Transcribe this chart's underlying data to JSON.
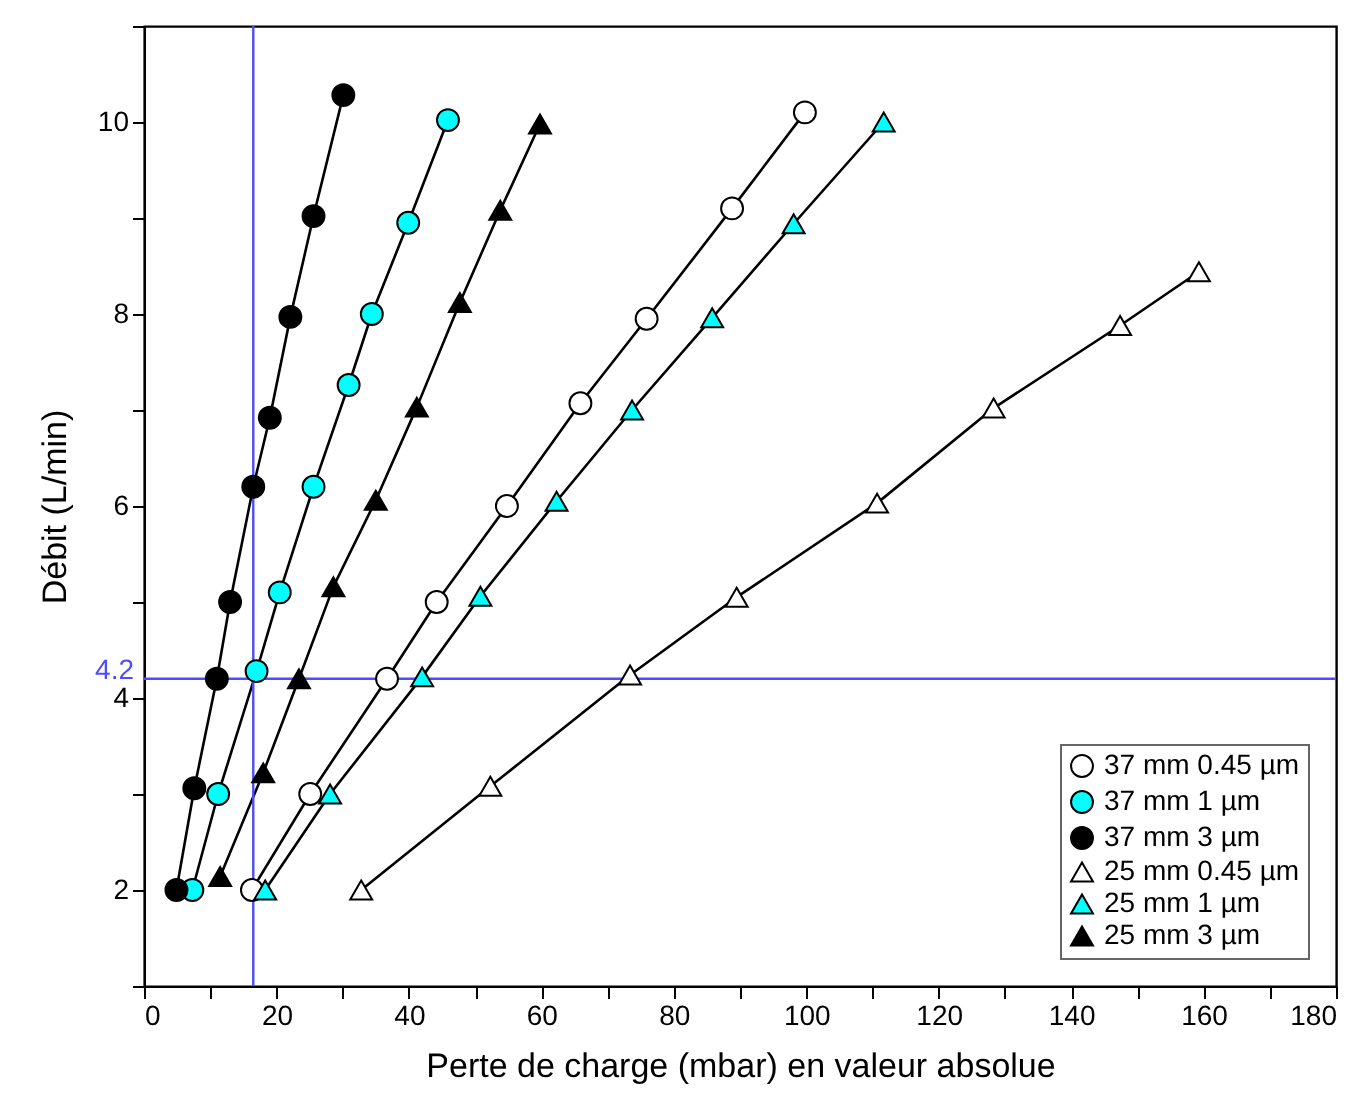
{
  "chart_data": {
    "type": "line",
    "xlabel": "Perte de charge (mbar) en valeur absolue",
    "ylabel": "Débit (L/min)",
    "xlim": [
      0,
      180
    ],
    "ylim": [
      1,
      11
    ],
    "xticks": [
      0,
      {
        "value": 10,
        "label": null
      },
      20,
      {
        "value": 30,
        "label": null
      },
      40,
      {
        "value": 50,
        "label": null
      },
      60,
      {
        "value": 70,
        "label": null
      },
      80,
      {
        "value": 90,
        "label": null
      },
      100,
      {
        "value": 110,
        "label": null
      },
      120,
      {
        "value": 130,
        "label": null
      },
      140,
      {
        "value": 150,
        "label": null
      },
      160,
      {
        "value": 170,
        "label": null
      },
      180
    ],
    "yticks": [
      {
        "value": 1,
        "label": null
      },
      2,
      {
        "value": 3,
        "label": null
      },
      4,
      {
        "value": 5,
        "label": null
      },
      6,
      {
        "value": 7,
        "label": null
      },
      8,
      {
        "value": 9,
        "label": null
      },
      10,
      {
        "value": 11,
        "label": null
      }
    ],
    "grid": false,
    "legend": "bottom right",
    "ref_lines": [
      {
        "axis": "y",
        "value": 4.2,
        "label": "4.2",
        "color": "#4d4dff"
      },
      {
        "axis": "x",
        "value": 16.5,
        "color": "#4d4dff"
      }
    ],
    "series": [
      {
        "name": "37 mm 0.45 µm",
        "color": "#ffffff",
        "marker": "circle",
        "x": [
          16.3,
          25.1,
          36.7,
          44.2,
          54.8,
          65.9,
          75.9,
          88.8,
          99.8
        ],
        "values": [
          2,
          3,
          4.2,
          5,
          6,
          7.07,
          7.95,
          9.1,
          10.1
        ]
      },
      {
        "name": "37 mm 1 µm",
        "color": "#00ffff",
        "marker": "circle",
        "x": [
          7.3,
          11.2,
          17,
          20.5,
          25.6,
          30.9,
          34.4,
          39.9,
          45.9
        ],
        "values": [
          2,
          3,
          4.28,
          5.1,
          6.2,
          7.26,
          8,
          8.95,
          10.02
        ]
      },
      {
        "name": "37 mm 3 µm",
        "color": "#000000",
        "marker": "circle",
        "x": [
          4.9,
          7.6,
          11,
          13,
          16.5,
          19,
          22.1,
          25.6,
          30.1
        ],
        "values": [
          2,
          3.06,
          4.2,
          5,
          6.2,
          6.92,
          7.97,
          9.02,
          10.28
        ]
      },
      {
        "name": "25 mm 0.45 µm",
        "color": "#ffffff",
        "marker": "triangle",
        "x": [
          32.8,
          52.3,
          73.4,
          89.5,
          110.7,
          128.3,
          147.4,
          159.3
        ],
        "values": [
          2,
          3.08,
          4.24,
          5.05,
          6.03,
          7.02,
          7.88,
          8.44
        ]
      },
      {
        "name": "25 mm 1 µm",
        "color": "#00ffff",
        "marker": "triangle",
        "x": [
          18.3,
          28.1,
          42,
          50.8,
          62.3,
          73.7,
          85.8,
          98.1,
          111.7
        ],
        "values": [
          2,
          3,
          4.22,
          5.06,
          6.05,
          7,
          7.96,
          8.94,
          10
        ]
      },
      {
        "name": "25 mm 3 µm",
        "color": "#000000",
        "marker": "triangle",
        "x": [
          11.5,
          18,
          23.4,
          28.6,
          35,
          41.2,
          47.7,
          53.8,
          59.8
        ],
        "values": [
          2.14,
          3.22,
          4.2,
          5.16,
          6.06,
          7.03,
          8.12,
          9.08,
          9.98
        ]
      }
    ]
  }
}
